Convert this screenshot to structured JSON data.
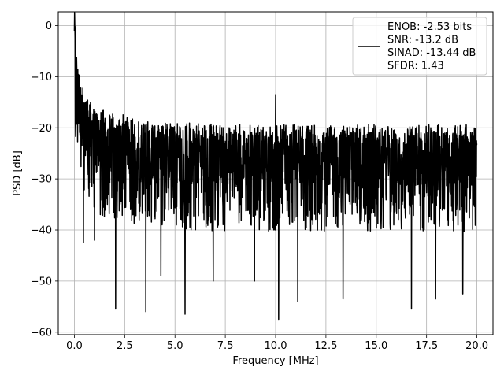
{
  "chart_data": {
    "type": "line",
    "xlabel": "Frequency [MHz]",
    "ylabel": "PSD [dB]",
    "xlim": [
      -0.8,
      20.8
    ],
    "ylim": [
      -60.5,
      2.7
    ],
    "x_ticks": [
      0.0,
      2.5,
      5.0,
      7.5,
      10.0,
      12.5,
      15.0,
      17.5,
      20.0
    ],
    "x_tick_labels": [
      "0.0",
      "2.5",
      "5.0",
      "7.5",
      "10.0",
      "12.5",
      "15.0",
      "17.5",
      "20.0"
    ],
    "y_ticks": [
      0,
      -10,
      -20,
      -30,
      -40,
      -50,
      -60
    ],
    "y_tick_labels": [
      "0",
      "−10",
      "−20",
      "−30",
      "−40",
      "−50",
      "−60"
    ],
    "grid": true,
    "legend_placement": "top-right",
    "legend_lines": [
      "ENOB: -2.53 bits",
      "SNR: -13.2 dB",
      "SINAD: -13.44 dB",
      "SFDR: 1.43"
    ],
    "series": [
      {
        "color": "#000000",
        "description_points": {
          "x": [
            0.0,
            0.02,
            0.05,
            0.1,
            0.2,
            0.4,
            0.6,
            1.0,
            1.5,
            2.0,
            3.0,
            4.0,
            5.0,
            6.0,
            7.0,
            8.0,
            9.0,
            10.0,
            11.0,
            12.0,
            13.0,
            14.0,
            15.0,
            16.0,
            17.0,
            18.0,
            19.0,
            20.0
          ],
          "y": [
            -3.0,
            0.0,
            -8.0,
            -11.0,
            -14.0,
            -18.0,
            -20.0,
            -21.5,
            -22.5,
            -23.0,
            -24.0,
            -24.5,
            -24.8,
            -25.0,
            -25.2,
            -25.3,
            -25.3,
            -25.3,
            -25.2,
            -25.2,
            -25.3,
            -25.4,
            -25.3,
            -25.3,
            -25.2,
            -25.3,
            -25.3,
            -25.3
          ]
        },
        "noise_band_lower_typical": -38,
        "notable_dips": [
          {
            "x": 2.05,
            "y": -55.5
          },
          {
            "x": 3.55,
            "y": -56.0
          },
          {
            "x": 5.5,
            "y": -56.5
          },
          {
            "x": 10.15,
            "y": -57.5
          },
          {
            "x": 11.1,
            "y": -54.0
          },
          {
            "x": 13.35,
            "y": -53.5
          },
          {
            "x": 16.75,
            "y": -55.5
          },
          {
            "x": 17.95,
            "y": -53.5
          },
          {
            "x": 19.3,
            "y": -52.5
          },
          {
            "x": 0.45,
            "y": -42.5
          },
          {
            "x": 1.0,
            "y": -42.0
          },
          {
            "x": 6.9,
            "y": -50.0
          },
          {
            "x": 8.95,
            "y": -50.0
          },
          {
            "x": 4.3,
            "y": -49.0
          }
        ],
        "notable_peaks": [
          {
            "x": 0.02,
            "y": 0.0
          },
          {
            "x": 0.12,
            "y": -8.5
          },
          {
            "x": 10.0,
            "y": -13.5
          }
        ]
      }
    ]
  }
}
